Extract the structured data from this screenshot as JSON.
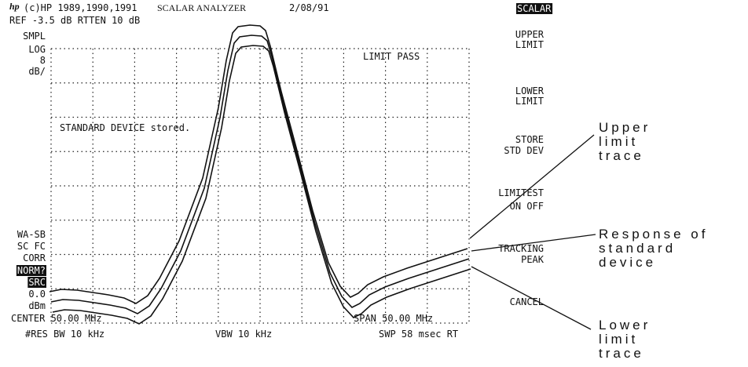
{
  "header": {
    "copyright": "(c)HP 1989,1990,1991",
    "instrument": "SCALAR  ANALYZER",
    "date": "2/08/91"
  },
  "ref_line": "REF    -3.5  dB  RTTEN  10 dB",
  "left_labels": [
    "SMPL",
    "LOG",
    "8",
    "dB/",
    "WA-SB",
    "SC FC",
    "CORR",
    "NORM?",
    "SRC",
    "0.0",
    "dBm"
  ],
  "messages": {
    "limit_status": "LIMIT PASS",
    "stored": "STANDARD DEVICE stored."
  },
  "footer": {
    "center": "CENTER 50.00 MHz",
    "span": "SPAN 50.00 MHz",
    "res_bw": "#RES BW 10 kHz",
    "vbw": "VBW 10 kHz",
    "sweep": "SWP  58  msec  RT"
  },
  "softkeys": {
    "title": "SCALAR",
    "keys": [
      [
        "UPPER",
        "LIMIT"
      ],
      [
        "LOWER",
        "LIMIT"
      ],
      [
        "STORE",
        "STD DEV"
      ],
      [
        "LIMITEST",
        "ON  OFF"
      ],
      [
        "TRACKING",
        "PEAK"
      ],
      [
        "CANCEL"
      ]
    ]
  },
  "callouts": [
    [
      "Upper",
      "limit",
      "trace"
    ],
    [
      "Response of",
      "standard",
      "device"
    ],
    [
      "Lower",
      "limit",
      "trace"
    ]
  ]
}
